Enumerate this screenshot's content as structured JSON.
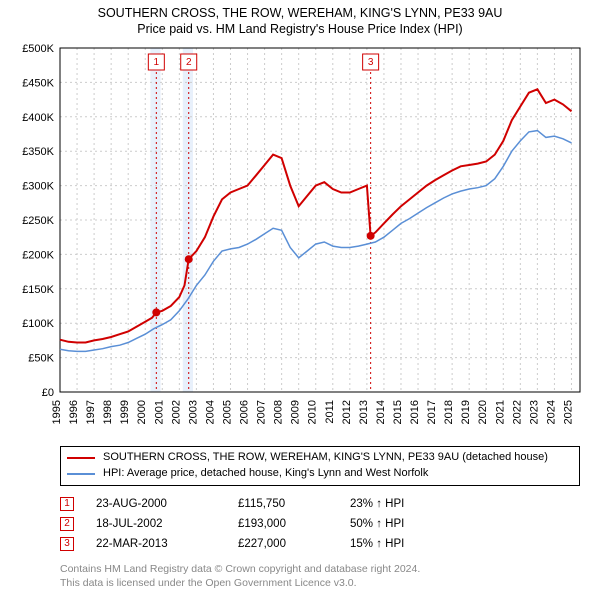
{
  "title_line1": "SOUTHERN CROSS, THE ROW, WEREHAM, KING'S LYNN, PE33 9AU",
  "title_line2": "Price paid vs. HM Land Registry's House Price Index (HPI)",
  "chart": {
    "type": "line",
    "xlim": [
      1995,
      2025.5
    ],
    "ylim": [
      0,
      500000
    ],
    "ytick_step": 50000,
    "ytick_labels": [
      "£0",
      "£50K",
      "£100K",
      "£150K",
      "£200K",
      "£250K",
      "£300K",
      "£350K",
      "£400K",
      "£450K",
      "£500K"
    ],
    "xtick_step": 1,
    "xtick_labels": [
      "1995",
      "1996",
      "1997",
      "1998",
      "1999",
      "2000",
      "2001",
      "2002",
      "2003",
      "2004",
      "2005",
      "2006",
      "2007",
      "2008",
      "2009",
      "2010",
      "2011",
      "2012",
      "2013",
      "2014",
      "2015",
      "2016",
      "2017",
      "2018",
      "2019",
      "2020",
      "2021",
      "2022",
      "2023",
      "2024",
      "2025"
    ],
    "grid_color": "#cccccc",
    "background_color": "#ffffff",
    "series": [
      {
        "name": "property",
        "label": "SOUTHERN CROSS, THE ROW, WEREHAM, KING'S LYNN, PE33 9AU (detached house)",
        "color": "#d00000",
        "width": 2,
        "data": [
          [
            1995.0,
            76000
          ],
          [
            1995.5,
            73000
          ],
          [
            1996.0,
            72000
          ],
          [
            1996.5,
            72000
          ],
          [
            1997.0,
            75000
          ],
          [
            1997.5,
            77000
          ],
          [
            1998.0,
            80000
          ],
          [
            1998.5,
            84000
          ],
          [
            1999.0,
            88000
          ],
          [
            1999.5,
            95000
          ],
          [
            2000.0,
            102000
          ],
          [
            2000.4,
            108000
          ],
          [
            2000.65,
            115750
          ],
          [
            2001.0,
            118000
          ],
          [
            2001.5,
            125000
          ],
          [
            2002.0,
            138000
          ],
          [
            2002.3,
            155000
          ],
          [
            2002.55,
            193000
          ],
          [
            2003.0,
            205000
          ],
          [
            2003.5,
            225000
          ],
          [
            2004.0,
            255000
          ],
          [
            2004.5,
            280000
          ],
          [
            2005.0,
            290000
          ],
          [
            2005.5,
            295000
          ],
          [
            2006.0,
            300000
          ],
          [
            2006.5,
            315000
          ],
          [
            2007.0,
            330000
          ],
          [
            2007.5,
            345000
          ],
          [
            2008.0,
            340000
          ],
          [
            2008.5,
            300000
          ],
          [
            2009.0,
            270000
          ],
          [
            2009.5,
            285000
          ],
          [
            2010.0,
            300000
          ],
          [
            2010.5,
            305000
          ],
          [
            2011.0,
            295000
          ],
          [
            2011.5,
            290000
          ],
          [
            2012.0,
            290000
          ],
          [
            2012.5,
            295000
          ],
          [
            2013.0,
            300000
          ],
          [
            2013.22,
            227000
          ],
          [
            2013.5,
            232000
          ],
          [
            2014.0,
            245000
          ],
          [
            2014.5,
            258000
          ],
          [
            2015.0,
            270000
          ],
          [
            2015.5,
            280000
          ],
          [
            2016.0,
            290000
          ],
          [
            2016.5,
            300000
          ],
          [
            2017.0,
            308000
          ],
          [
            2017.5,
            315000
          ],
          [
            2018.0,
            322000
          ],
          [
            2018.5,
            328000
          ],
          [
            2019.0,
            330000
          ],
          [
            2019.5,
            332000
          ],
          [
            2020.0,
            335000
          ],
          [
            2020.5,
            345000
          ],
          [
            2021.0,
            365000
          ],
          [
            2021.5,
            395000
          ],
          [
            2022.0,
            415000
          ],
          [
            2022.5,
            435000
          ],
          [
            2023.0,
            440000
          ],
          [
            2023.5,
            420000
          ],
          [
            2024.0,
            425000
          ],
          [
            2024.5,
            418000
          ],
          [
            2025.0,
            408000
          ]
        ]
      },
      {
        "name": "hpi",
        "label": "HPI: Average price, detached house, King's Lynn and West Norfolk",
        "color": "#5a8fd6",
        "width": 1.5,
        "data": [
          [
            1995.0,
            62000
          ],
          [
            1995.5,
            60000
          ],
          [
            1996.0,
            59000
          ],
          [
            1996.5,
            59000
          ],
          [
            1997.0,
            61000
          ],
          [
            1997.5,
            63000
          ],
          [
            1998.0,
            66000
          ],
          [
            1998.5,
            68000
          ],
          [
            1999.0,
            72000
          ],
          [
            1999.5,
            78000
          ],
          [
            2000.0,
            84000
          ],
          [
            2000.5,
            92000
          ],
          [
            2001.0,
            98000
          ],
          [
            2001.5,
            105000
          ],
          [
            2002.0,
            118000
          ],
          [
            2002.5,
            135000
          ],
          [
            2003.0,
            155000
          ],
          [
            2003.5,
            170000
          ],
          [
            2004.0,
            190000
          ],
          [
            2004.5,
            205000
          ],
          [
            2005.0,
            208000
          ],
          [
            2005.5,
            210000
          ],
          [
            2006.0,
            215000
          ],
          [
            2006.5,
            222000
          ],
          [
            2007.0,
            230000
          ],
          [
            2007.5,
            238000
          ],
          [
            2008.0,
            235000
          ],
          [
            2008.5,
            210000
          ],
          [
            2009.0,
            195000
          ],
          [
            2009.5,
            205000
          ],
          [
            2010.0,
            215000
          ],
          [
            2010.5,
            218000
          ],
          [
            2011.0,
            212000
          ],
          [
            2011.5,
            210000
          ],
          [
            2012.0,
            210000
          ],
          [
            2012.5,
            212000
          ],
          [
            2013.0,
            215000
          ],
          [
            2013.5,
            218000
          ],
          [
            2014.0,
            225000
          ],
          [
            2014.5,
            235000
          ],
          [
            2015.0,
            245000
          ],
          [
            2015.5,
            252000
          ],
          [
            2016.0,
            260000
          ],
          [
            2016.5,
            268000
          ],
          [
            2017.0,
            275000
          ],
          [
            2017.5,
            282000
          ],
          [
            2018.0,
            288000
          ],
          [
            2018.5,
            292000
          ],
          [
            2019.0,
            295000
          ],
          [
            2019.5,
            297000
          ],
          [
            2020.0,
            300000
          ],
          [
            2020.5,
            310000
          ],
          [
            2021.0,
            328000
          ],
          [
            2021.5,
            350000
          ],
          [
            2022.0,
            365000
          ],
          [
            2022.5,
            378000
          ],
          [
            2023.0,
            380000
          ],
          [
            2023.5,
            370000
          ],
          [
            2024.0,
            372000
          ],
          [
            2024.5,
            368000
          ],
          [
            2025.0,
            362000
          ]
        ]
      }
    ],
    "event_bands": [
      {
        "from": 2000.3,
        "to": 2000.9,
        "color": "#e8f0fb"
      },
      {
        "from": 2002.2,
        "to": 2002.8,
        "color": "#e8f0fb"
      }
    ],
    "event_markers": [
      {
        "num": "1",
        "x": 2000.65,
        "y": 115750
      },
      {
        "num": "2",
        "x": 2002.55,
        "y": 193000
      },
      {
        "num": "3",
        "x": 2013.22,
        "y": 227000
      }
    ]
  },
  "legend": {
    "items": [
      {
        "color": "#d00000",
        "label": "SOUTHERN CROSS, THE ROW, WEREHAM, KING'S LYNN, PE33 9AU (detached house)"
      },
      {
        "color": "#5a8fd6",
        "label": "HPI: Average price, detached house, King's Lynn and West Norfolk"
      }
    ]
  },
  "events": [
    {
      "num": "1",
      "date": "23-AUG-2000",
      "price": "£115,750",
      "delta": "23% ↑ HPI",
      "color": "#d00000"
    },
    {
      "num": "2",
      "date": "18-JUL-2002",
      "price": "£193,000",
      "delta": "50% ↑ HPI",
      "color": "#d00000"
    },
    {
      "num": "3",
      "date": "22-MAR-2013",
      "price": "£227,000",
      "delta": "15% ↑ HPI",
      "color": "#d00000"
    }
  ],
  "attribution_line1": "Contains HM Land Registry data © Crown copyright and database right 2024.",
  "attribution_line2": "This data is licensed under the Open Government Licence v3.0."
}
